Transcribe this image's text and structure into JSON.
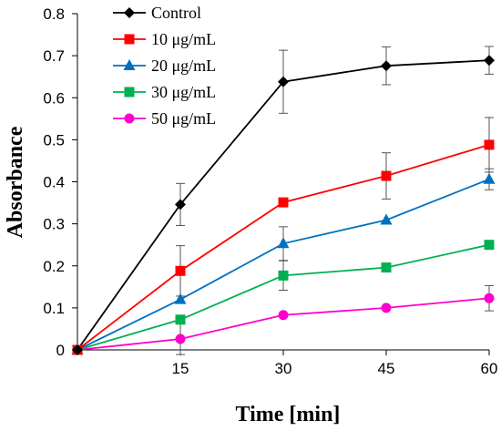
{
  "chart_data": {
    "type": "line",
    "xlabel": "Time [min]",
    "ylabel": "Absorbance",
    "x": [
      0,
      15,
      30,
      45,
      60
    ],
    "x_tick_labels": [
      "15",
      "30",
      "45",
      "60"
    ],
    "y_tick_labels": [
      "0",
      "0.1",
      "0.2",
      "0.3",
      "0.4",
      "0.5",
      "0.6",
      "0.7",
      "0.8"
    ],
    "xlim": [
      0,
      60
    ],
    "ylim": [
      0,
      0.8
    ],
    "grid": false,
    "legend_position": "top-left",
    "series": [
      {
        "name": "Control",
        "color": "#000000",
        "marker": "diamond",
        "values": [
          0,
          0.346,
          0.638,
          0.676,
          0.689
        ],
        "errors": [
          0.01,
          0.05,
          0.075,
          0.045,
          0.033
        ]
      },
      {
        "name": "10 μg/mL",
        "color": "#ff0000",
        "marker": "square",
        "values": [
          0,
          0.188,
          0.351,
          0.414,
          0.488
        ],
        "errors": [
          0.01,
          0.06,
          0.0,
          0.055,
          0.065
        ]
      },
      {
        "name": "20 μg/mL",
        "color": "#0070c0",
        "marker": "triangle",
        "values": [
          0,
          0.12,
          0.253,
          0.309,
          0.406
        ],
        "errors": [
          0.01,
          0.0,
          0.04,
          0.0,
          0.025
        ]
      },
      {
        "name": "30 μg/mL",
        "color": "#00b050",
        "marker": "square",
        "values": [
          0,
          0.072,
          0.177,
          0.196,
          0.25
        ],
        "errors": [
          0.01,
          0.0,
          0.035,
          0.01,
          0.01
        ]
      },
      {
        "name": "50 μg/mL",
        "color": "#ff00cc",
        "marker": "circle",
        "values": [
          0,
          0.026,
          0.083,
          0.1,
          0.123
        ],
        "errors": [
          0.01,
          0.037,
          0.0,
          0.0,
          0.03
        ]
      }
    ]
  }
}
